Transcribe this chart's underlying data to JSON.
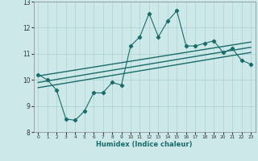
{
  "title": "",
  "xlabel": "Humidex (Indice chaleur)",
  "xlim": [
    -0.5,
    23.5
  ],
  "ylim": [
    8,
    13
  ],
  "xticks": [
    0,
    1,
    2,
    3,
    4,
    5,
    6,
    7,
    8,
    9,
    10,
    11,
    12,
    13,
    14,
    15,
    16,
    17,
    18,
    19,
    20,
    21,
    22,
    23
  ],
  "yticks": [
    8,
    9,
    10,
    11,
    12,
    13
  ],
  "bg_color": "#cce8e8",
  "line_color": "#1a6b6b",
  "grid_color": "#b0d0d0",
  "scatter_x": [
    0,
    1,
    2,
    3,
    4,
    5,
    6,
    7,
    8,
    9,
    10,
    11,
    12,
    13,
    14,
    15,
    16,
    17,
    18,
    19,
    20,
    21,
    22,
    23
  ],
  "scatter_y": [
    10.2,
    10.0,
    9.6,
    8.5,
    8.45,
    8.8,
    9.5,
    9.5,
    9.9,
    9.8,
    11.3,
    11.65,
    12.55,
    11.65,
    12.25,
    12.65,
    11.3,
    11.3,
    11.4,
    11.5,
    11.05,
    11.2,
    10.75,
    10.6
  ],
  "upper_line": [
    [
      0,
      23
    ],
    [
      10.15,
      11.45
    ]
  ],
  "lower_line": [
    [
      0,
      23
    ],
    [
      9.7,
      11.05
    ]
  ],
  "mid_line": [
    [
      0,
      23
    ],
    [
      9.9,
      11.25
    ]
  ]
}
